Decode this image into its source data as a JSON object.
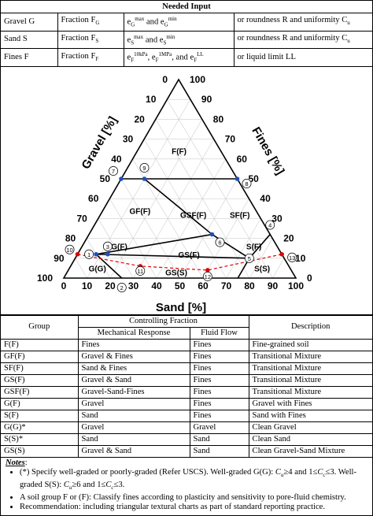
{
  "needed_input": {
    "title": "Needed Input",
    "rows": [
      {
        "soil": "Gravel G",
        "fraction": "Fraction F",
        "fraction_sub": "G",
        "void": "e",
        "void_parts": [
          "G",
          "max",
          "and e",
          "G",
          "min"
        ],
        "alt": "or roundness R and uniformity C",
        "alt_sub": "u"
      },
      {
        "soil": "Sand S",
        "fraction": "Fraction F",
        "fraction_sub": "S",
        "void": "e",
        "void_parts": [
          "S",
          "max",
          "and e",
          "S",
          "min"
        ],
        "alt": "or roundness R and uniformity C",
        "alt_sub": "u"
      },
      {
        "soil": "Fines F",
        "fraction": "Fraction F",
        "fraction_sub": "F",
        "void": "e",
        "void_parts": [
          "F",
          "10kPa",
          ", e",
          "F",
          "1MPa",
          ", and e",
          "F",
          "LL"
        ],
        "alt": "or liquid limit LL",
        "alt_sub": ""
      }
    ]
  },
  "diagram": {
    "gravel_axis_label": "Gravel [%]",
    "fines_axis_label": "Fines [%]",
    "sand_axis_label": "Sand [%]",
    "gravel_ticks": [
      "0",
      "10",
      "20",
      "30",
      "40",
      "50",
      "60",
      "70",
      "80",
      "90",
      "100"
    ],
    "fines_ticks": [
      "100",
      "90",
      "80",
      "70",
      "60",
      "50",
      "40",
      "30",
      "20",
      "10",
      "0"
    ],
    "sand_ticks": [
      "0",
      "10",
      "20",
      "30",
      "40",
      "50",
      "60",
      "70",
      "80",
      "90",
      "100"
    ],
    "regions": [
      "F(F)",
      "GF(F)",
      "GSF(F)",
      "SF(F)",
      "G(F)",
      "GS(F)",
      "S(F)",
      "G(G)",
      "GS(S)",
      "S(S)"
    ],
    "points": [
      "1",
      "2",
      "3",
      "4",
      "5",
      "6",
      "7",
      "8",
      "9",
      "10",
      "11",
      "12",
      "13"
    ]
  },
  "groups_table": {
    "headers": {
      "group": "Group",
      "controlling": "Controlling Fraction",
      "mechanical": "Mechanical Response",
      "fluid": "Fluid Flow",
      "description": "Description"
    },
    "rows": [
      {
        "group": "F(F)",
        "mechanical": "Fines",
        "fluid": "Fines",
        "description": "Fine-grained soil"
      },
      {
        "group": "GF(F)",
        "mechanical": "Gravel & Fines",
        "fluid": "Fines",
        "description": "Transitional Mixture"
      },
      {
        "group": "SF(F)",
        "mechanical": "Sand & Fines",
        "fluid": "Fines",
        "description": "Transitional Mixture"
      },
      {
        "group": "GS(F)",
        "mechanical": "Gravel & Sand",
        "fluid": "Fines",
        "description": "Transitional Mixture"
      },
      {
        "group": "GSF(F)",
        "mechanical": "Gravel-Sand-Fines",
        "fluid": "Fines",
        "description": "Transitional Mixture"
      },
      {
        "group": "G(F)",
        "mechanical": "Gravel",
        "fluid": "Fines",
        "description": "Gravel with Fines"
      },
      {
        "group": "S(F)",
        "mechanical": "Sand",
        "fluid": "Fines",
        "description": "Sand with Fines"
      },
      {
        "group": "G(G)*",
        "mechanical": "Gravel",
        "fluid": "Gravel",
        "description": "Clean Gravel"
      },
      {
        "group": "S(S)*",
        "mechanical": "Sand",
        "fluid": "Sand",
        "description": "Clean Sand"
      },
      {
        "group": "GS(S)",
        "mechanical": "Gravel & Sand",
        "fluid": "Sand",
        "description": "Clean Gravel-Sand Mixture"
      }
    ]
  },
  "notes": {
    "title": "Notes",
    "items": [
      "(*) Specify well-graded or poorly-graded (Refer USCS). Well-graded G(G): Cu≥4 and 1≤Cc≤3. Well-graded S(S): Cu≥6 and 1≤Cc≤3.",
      "A soil group F or (F): Classify fines according to plasticity and sensitivity to pore-fluid chemistry.",
      "Recommendation: including triangular textural charts as part of standard reporting practice."
    ]
  }
}
